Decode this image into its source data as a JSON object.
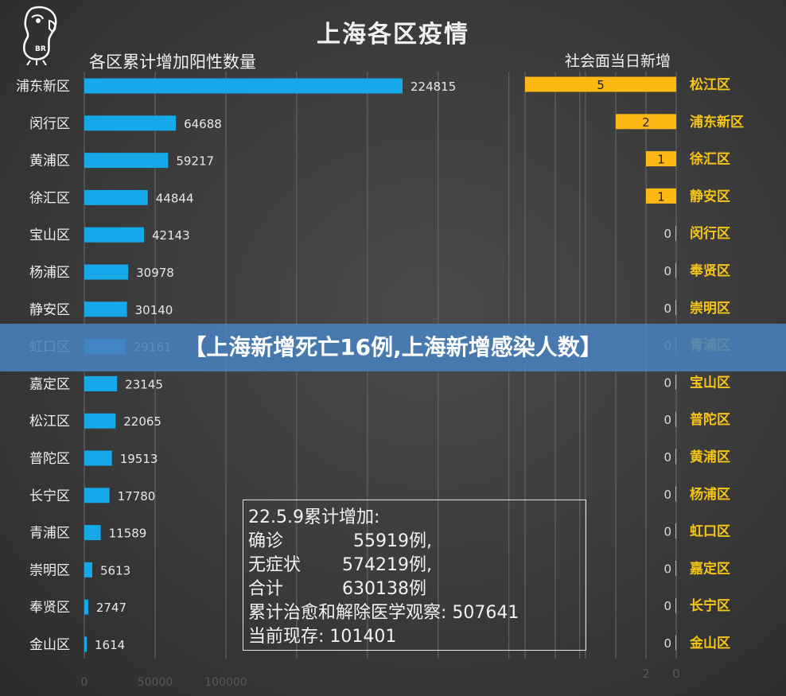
{
  "title": "上海各区疫情",
  "banner": "【上海新增死亡16例,上海新增感染人数】",
  "logo_text": "BR",
  "info_box": {
    "heading": "22.5.9累计增加:",
    "confirmed_label": "确诊",
    "confirmed_value": "55919例,",
    "asymptomatic_label": "无症状",
    "asymptomatic_value": "574219例,",
    "total_label": "合计",
    "total_value": "630138例",
    "recovered": "累计治愈和解除医学观察: 507641",
    "current": "当前现存: 101401"
  },
  "chart_data": [
    {
      "type": "bar",
      "orientation": "horizontal",
      "title": "各区累计增加阳性数量",
      "categories": [
        "浦东新区",
        "闵行区",
        "黄浦区",
        "徐汇区",
        "宝山区",
        "杨浦区",
        "静安区",
        "虹口区",
        "嘉定区",
        "松江区",
        "普陀区",
        "长宁区",
        "青浦区",
        "崇明区",
        "奉贤区",
        "金山区"
      ],
      "values": [
        224815,
        64688,
        59217,
        44844,
        42143,
        30978,
        30140,
        29161,
        23145,
        22065,
        19513,
        17780,
        11589,
        5613,
        2747,
        1614
      ],
      "xlim": [
        0,
        350000
      ],
      "x_ticks": [
        "0",
        "50000",
        "100000"
      ],
      "bar_color": "#16a8e8",
      "grid": true
    },
    {
      "type": "bar",
      "orientation": "horizontal",
      "direction": "right-to-left",
      "title": "社会面当日新增",
      "categories": [
        "松江区",
        "浦东新区",
        "徐汇区",
        "静安区",
        "闵行区",
        "奉贤区",
        "崇明区",
        "青浦区",
        "宝山区",
        "普陀区",
        "黄浦区",
        "杨浦区",
        "虹口区",
        "嘉定区",
        "长宁区",
        "金山区"
      ],
      "values": [
        5,
        2,
        1,
        1,
        0,
        0,
        0,
        0,
        0,
        0,
        0,
        0,
        0,
        0,
        0,
        0
      ],
      "xlim": [
        0,
        10
      ],
      "x_ticks": [
        "2",
        "0"
      ],
      "bar_color": "#fdb814",
      "label_color": "#f5c518"
    }
  ]
}
